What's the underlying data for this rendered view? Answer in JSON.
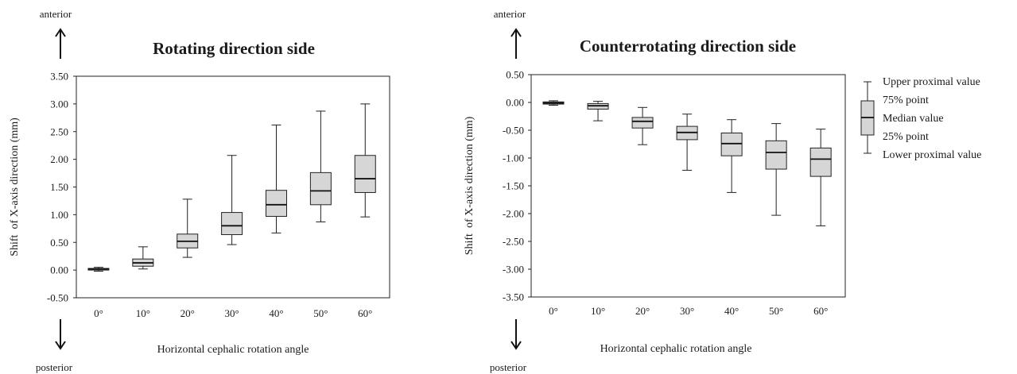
{
  "direction_labels": {
    "top": "anterior",
    "bottom": "posterior"
  },
  "legend": {
    "upper": "Upper proximal value",
    "q3": "75% point",
    "median": "Median value",
    "q1": "25% point",
    "lower": "Lower proximal value"
  },
  "chart_data": [
    {
      "type": "boxplot",
      "title": "Rotating direction side",
      "xlabel": "Horizontal cephalic rotation angle",
      "ylabel": "Shift  of X-axis direction (mm)",
      "categories": [
        "0°",
        "10°",
        "20°",
        "30°",
        "40°",
        "50°",
        "60°"
      ],
      "ylim": [
        -0.5,
        3.5
      ],
      "yticks": [
        "3.50",
        "3.00",
        "2.50",
        "2.00",
        "1.50",
        "1.00",
        "0.50",
        "0.00",
        "-0.50"
      ],
      "boxes": [
        {
          "lower": -0.02,
          "q1": 0.0,
          "median": 0.02,
          "q3": 0.03,
          "upper": 0.05
        },
        {
          "lower": 0.02,
          "q1": 0.07,
          "median": 0.13,
          "q3": 0.2,
          "upper": 0.42
        },
        {
          "lower": 0.23,
          "q1": 0.4,
          "median": 0.52,
          "q3": 0.65,
          "upper": 1.28
        },
        {
          "lower": 0.46,
          "q1": 0.64,
          "median": 0.8,
          "q3": 1.04,
          "upper": 2.07
        },
        {
          "lower": 0.67,
          "q1": 0.97,
          "median": 1.18,
          "q3": 1.44,
          "upper": 2.62
        },
        {
          "lower": 0.87,
          "q1": 1.18,
          "median": 1.43,
          "q3": 1.76,
          "upper": 2.87
        },
        {
          "lower": 0.96,
          "q1": 1.4,
          "median": 1.65,
          "q3": 2.07,
          "upper": 3.0
        }
      ]
    },
    {
      "type": "boxplot",
      "title": "Counterrotating direction side",
      "xlabel": "Horizontal cephalic rotation angle",
      "ylabel": "Shift  of X-axis direction (mm)",
      "categories": [
        "0°",
        "10°",
        "20°",
        "30°",
        "40°",
        "50°",
        "60°"
      ],
      "ylim": [
        -3.5,
        0.5
      ],
      "yticks": [
        "0.50",
        "0.00",
        "-0.50",
        "-1.00",
        "-1.50",
        "-2.00",
        "-2.50",
        "-3.00",
        "-3.50"
      ],
      "boxes": [
        {
          "lower": -0.05,
          "q1": -0.03,
          "median": -0.01,
          "q3": 0.01,
          "upper": 0.03
        },
        {
          "lower": -0.33,
          "q1": -0.12,
          "median": -0.06,
          "q3": -0.02,
          "upper": 0.02
        },
        {
          "lower": -0.76,
          "q1": -0.46,
          "median": -0.34,
          "q3": -0.27,
          "upper": -0.09
        },
        {
          "lower": -1.22,
          "q1": -0.67,
          "median": -0.54,
          "q3": -0.43,
          "upper": -0.21
        },
        {
          "lower": -1.62,
          "q1": -0.96,
          "median": -0.74,
          "q3": -0.55,
          "upper": -0.31
        },
        {
          "lower": -2.03,
          "q1": -1.2,
          "median": -0.9,
          "q3": -0.69,
          "upper": -0.38
        },
        {
          "lower": -2.22,
          "q1": -1.33,
          "median": -1.02,
          "q3": -0.82,
          "upper": -0.48
        }
      ]
    }
  ]
}
